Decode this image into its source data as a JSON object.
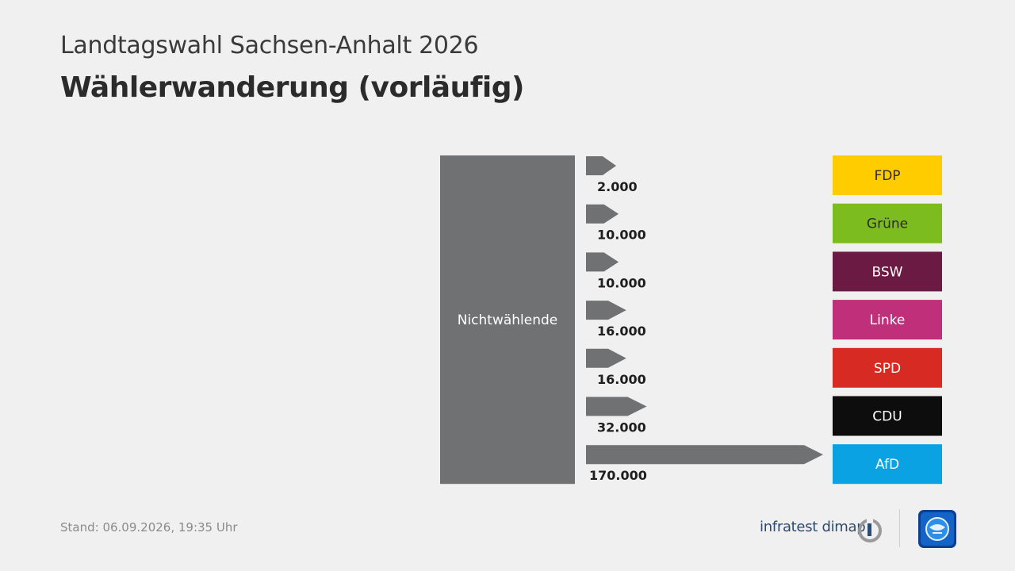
{
  "header": {
    "supertitle": "Landtagswahl Sachsen-Anhalt 2026",
    "title": "Wählerwanderung (vorläufig)"
  },
  "chart_data": {
    "type": "bar",
    "source": "Nichtwählende",
    "source_color": "#707172",
    "arrow_color": "#707172",
    "categories": [
      "FDP",
      "Grüne",
      "BSW",
      "Linke",
      "SPD",
      "CDU",
      "AfD"
    ],
    "values": [
      2000,
      10000,
      10000,
      16000,
      16000,
      32000,
      170000
    ],
    "value_labels": [
      "2.000",
      "10.000",
      "10.000",
      "16.000",
      "16.000",
      "32.000",
      "170.000"
    ],
    "category_colors": [
      "#ffcc00",
      "#7dbc1e",
      "#6b1a43",
      "#c0307a",
      "#d62a22",
      "#0d0d0d",
      "#0aa2e2"
    ],
    "category_text_colors": [
      "#2b2b2b",
      "#2b2b2b",
      "#ffffff",
      "#ffffff",
      "#ffffff",
      "#ffffff",
      "#ffffff"
    ]
  },
  "footer": {
    "stand": "Stand:  06.09.2026, 19:35 Uhr",
    "brand": "infratest dimap",
    "brand_logo_icon": "infratest-dimap-logo-icon",
    "broadcaster_icon": "tagesschau-logo-icon"
  }
}
